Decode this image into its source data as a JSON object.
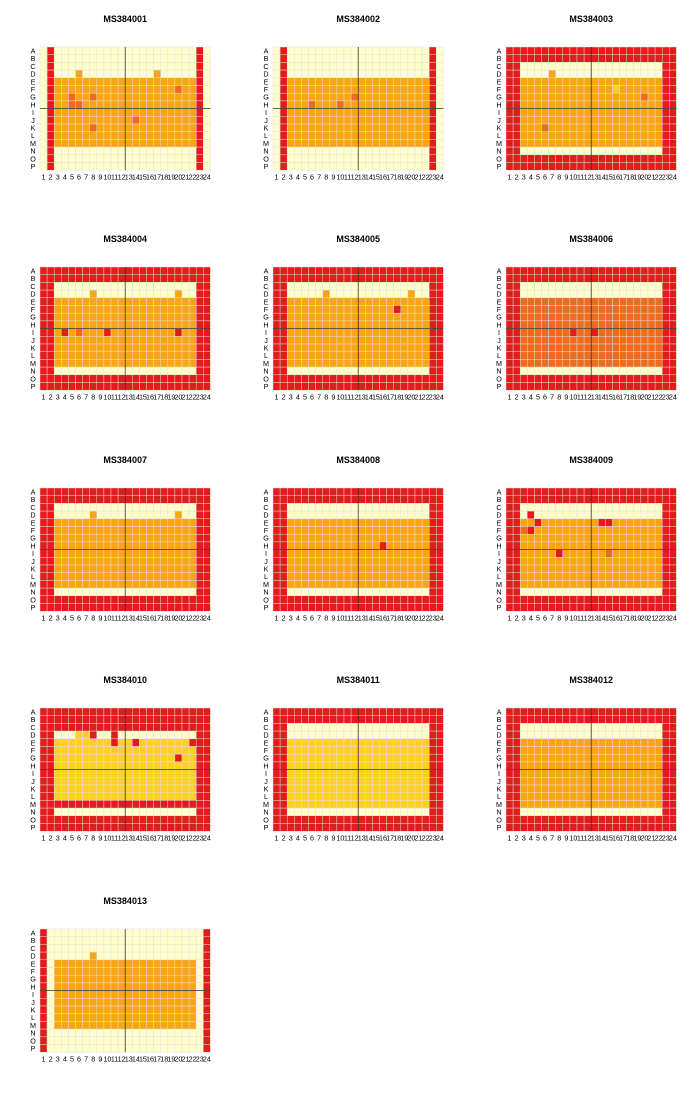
{
  "chart_data": {
    "type": "heatmap",
    "row_labels": [
      "A",
      "B",
      "C",
      "D",
      "E",
      "F",
      "G",
      "H",
      "I",
      "J",
      "K",
      "L",
      "M",
      "N",
      "O",
      "P"
    ],
    "col_labels": [
      "1",
      "2",
      "3",
      "4",
      "5",
      "6",
      "7",
      "8",
      "9",
      "10",
      "11",
      "12",
      "13",
      "14",
      "15",
      "16",
      "17",
      "18",
      "19",
      "20",
      "21",
      "22",
      "23",
      "24"
    ],
    "level_colors": {
      "0": "#ffffff",
      "1": "#ffffcc",
      "2": "#ffff33",
      "3": "#fed024",
      "4": "#fca514",
      "5": "#f58d17",
      "6": "#ef6c1e",
      "7": "#e21b1b"
    },
    "grid_color": "#e0e0e0",
    "divider_color": "#333333",
    "encoding": "each string is one plate row (A..P); each character is the colour level 0-7 of wells 1..24",
    "plates": [
      {
        "title": "MS384001",
        "rows": [
          "171111111111111111111171",
          "171111111111111111111171",
          "171111111111111111111171",
          "171114111111111141111171",
          "174444444444444444444471",
          "174444444444444444464471",
          "174464464444444444444471",
          "174466444444444444444471",
          "174444444444444444444471",
          "174444444444464444444471",
          "174444464444444444444471",
          "174444444444444444444471",
          "174444444444444444444471",
          "171111111111111111111171",
          "171111111111111111111171",
          "171111111111111111111171"
        ]
      },
      {
        "title": "MS384002",
        "rows": [
          "171111111111111111111171",
          "171111111111111111111171",
          "171111111111111111111171",
          "171111111111111111111171",
          "174444444444444444444471",
          "174444444444444444444471",
          "174444444446444444444471",
          "174446444644444444444471",
          "174444444444444444444471",
          "174444444444444444444471",
          "174444444444444444444471",
          "174444444444444444444471",
          "174444444444444444444471",
          "171111111111111111111171",
          "171111111111111111111171",
          "171111111111111111111171"
        ]
      },
      {
        "title": "MS384003",
        "rows": [
          "777777777777777777777777",
          "777777777777777777777777",
          "771111111111111111111177",
          "771111411111111111111177",
          "774444444444444444444477",
          "774444444444444344444477",
          "774444444444444444464477",
          "774444444444444444444477",
          "774444444444444444444477",
          "774444444444444444444477",
          "774446444444444444444477",
          "774444444444444444444477",
          "774444444444444444444477",
          "771111111111111111111177",
          "777777777777777777777777",
          "777777777777777777777777"
        ]
      },
      {
        "title": "MS384004",
        "rows": [
          "777777777777777777777777",
          "777777777777777777777777",
          "771111111111111111111177",
          "771111141111111111141177",
          "774444444444444444444477",
          "774444444444444444444477",
          "774444444444444444444477",
          "774444444444444444444477",
          "774746444744444444474477",
          "774444444444444444444477",
          "774444444444444444444477",
          "774444444444444444444477",
          "774444444444444444444477",
          "771111111111111111111177",
          "777777777777777777777777",
          "777777777777777777777777"
        ]
      },
      {
        "title": "MS384005",
        "rows": [
          "777777777777777777777777",
          "777777777777777777777777",
          "771111111111111111111177",
          "771111141111111111141177",
          "774444444444444444444477",
          "774444444444444447444477",
          "774444444444444444444477",
          "774444444444444444444477",
          "774444444444444444444477",
          "774444444444444444444477",
          "774444444444444444444477",
          "774444444444444444444477",
          "774444444444444444444477",
          "771111111111111111111177",
          "777777777777777777777777",
          "777777777777777777777777"
        ]
      },
      {
        "title": "MS384006",
        "rows": [
          "777777777777777777777777",
          "777777777777777777777777",
          "771111111111111111111177",
          "771111111111111111111177",
          "776666666666666666666677",
          "776666666666666666666677",
          "776666666666666666666677",
          "776666666666666666666677",
          "776666666766766666666677",
          "776666666666666666666677",
          "776666666666666666666677",
          "776666666666666666666677",
          "776666666666666666666677",
          "771111111111111111111177",
          "777777777777777777777777",
          "777777777777777777777777"
        ]
      },
      {
        "title": "MS384007",
        "rows": [
          "777777777777777777777777",
          "777777777777777777777777",
          "771111111111111111111177",
          "771111141111111111141177",
          "774444444444444444444477",
          "774444444444444444444477",
          "774444444444444444444477",
          "774444444444444444444477",
          "774444444444444444444477",
          "774444444444444444444477",
          "774444444444444444444477",
          "774444444444444444444477",
          "774444444444444444444477",
          "771111111111111111111177",
          "777777777777777777777777",
          "777777777777777777777777"
        ]
      },
      {
        "title": "MS384008",
        "rows": [
          "777777777777777777777777",
          "777777777777777777777777",
          "771111111111111111111177",
          "771111111111111111111177",
          "774444444444444444444477",
          "774444444444444444444477",
          "774444444444444444444477",
          "774444444444444744444477",
          "774444444444444444444477",
          "774444444444444444444477",
          "774444444444444444444477",
          "774444444444444444444477",
          "774444444444444444444477",
          "771111111111111111111177",
          "777777777777777777777777",
          "777777777777777777777777"
        ]
      },
      {
        "title": "MS384009",
        "rows": [
          "777777777777777777777777",
          "777777777777777777777777",
          "771111111111111111111177",
          "771711111111111111111177",
          "774474444444477444444477",
          "776744444444444444444477",
          "774444444444444444444477",
          "774444444444444444444477",
          "774444474444446444444477",
          "774444444444444444444477",
          "774444444444444444444477",
          "774444444444444444444477",
          "774444444444444444444477",
          "771111111111111111111177",
          "777777777777777777777777",
          "777777777777777777777777"
        ]
      },
      {
        "title": "MS384010",
        "rows": [
          "777777777777777777777777",
          "777777777777777777777777",
          "777777777777777777777777",
          "771113371171111111111177",
          "773333333373373333333777",
          "773333333333333333333377",
          "773333333333333333373377",
          "773333333333333333333377",
          "773333333333333333333377",
          "773333333333333333333377",
          "773333333333333333333377",
          "773333333333333333333377",
          "777777777777777777777777",
          "771111111111111111111177",
          "777777777777777777777777",
          "777777777777777777777777"
        ]
      },
      {
        "title": "MS384011",
        "rows": [
          "777777777777777777777777",
          "777777777777777777777777",
          "771111111111111111111177",
          "771111111111111111111177",
          "773333333333333333333377",
          "773333333333333333333377",
          "773333333333333333333377",
          "773333333333333333333377",
          "773333333333333333333377",
          "773333333333333333333377",
          "773333333333333333333377",
          "773333333333333333333377",
          "773333333333333333333377",
          "771111111111111111111177",
          "777777777777777777777777",
          "777777777777777777777777"
        ]
      },
      {
        "title": "MS384012",
        "rows": [
          "777777777777777777777777",
          "777777777777777777777777",
          "771111111111111111111177",
          "771111111111111111111177",
          "774444444444444444444477",
          "774444444444444444444477",
          "774444444444444444444477",
          "774444444444444444444477",
          "774444444444444444444477",
          "774444444444444444444477",
          "774444444444444444444477",
          "774444444444444444444477",
          "774444444444444444444477",
          "771111111111111111111177",
          "777777777777777777777777",
          "777777777777777777777777"
        ]
      },
      {
        "title": "MS384013",
        "rows": [
          "711111111111111111111117",
          "711111111111111111111117",
          "711111111111111111111117",
          "711111141111111111111117",
          "714444444444444444444417",
          "714444444444444444444417",
          "714444444444444444444417",
          "714444444444444444444417",
          "714444444444444444444417",
          "714444444444444444444417",
          "714444444444444444444417",
          "714444444444444444444417",
          "714444444444444444444417",
          "711111111111111111111117",
          "711111111111111111111117",
          "711111111111111111111117"
        ]
      }
    ]
  }
}
